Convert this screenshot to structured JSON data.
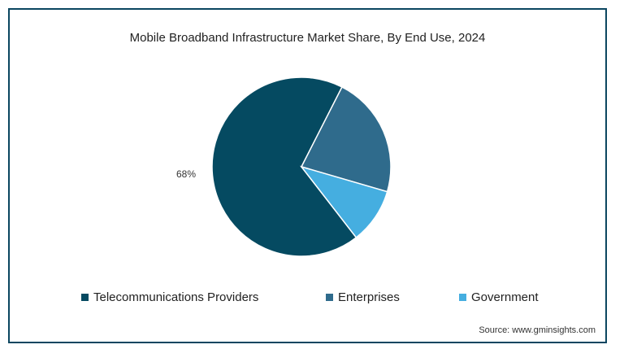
{
  "chart_data": {
    "type": "pie",
    "title": "Mobile Broadband Infrastructure Market Share, By End Use, 2024",
    "slices": [
      {
        "name": "Telecommunications Providers",
        "value": 68,
        "label": "68%",
        "color": "#054a61"
      },
      {
        "name": "Enterprises",
        "value": 22,
        "label": "",
        "color": "#2f6b8c"
      },
      {
        "name": "Government",
        "value": 10,
        "label": "",
        "color": "#45aee0"
      }
    ],
    "legend_position": "bottom",
    "source": "Source: www.gminsights.com"
  }
}
